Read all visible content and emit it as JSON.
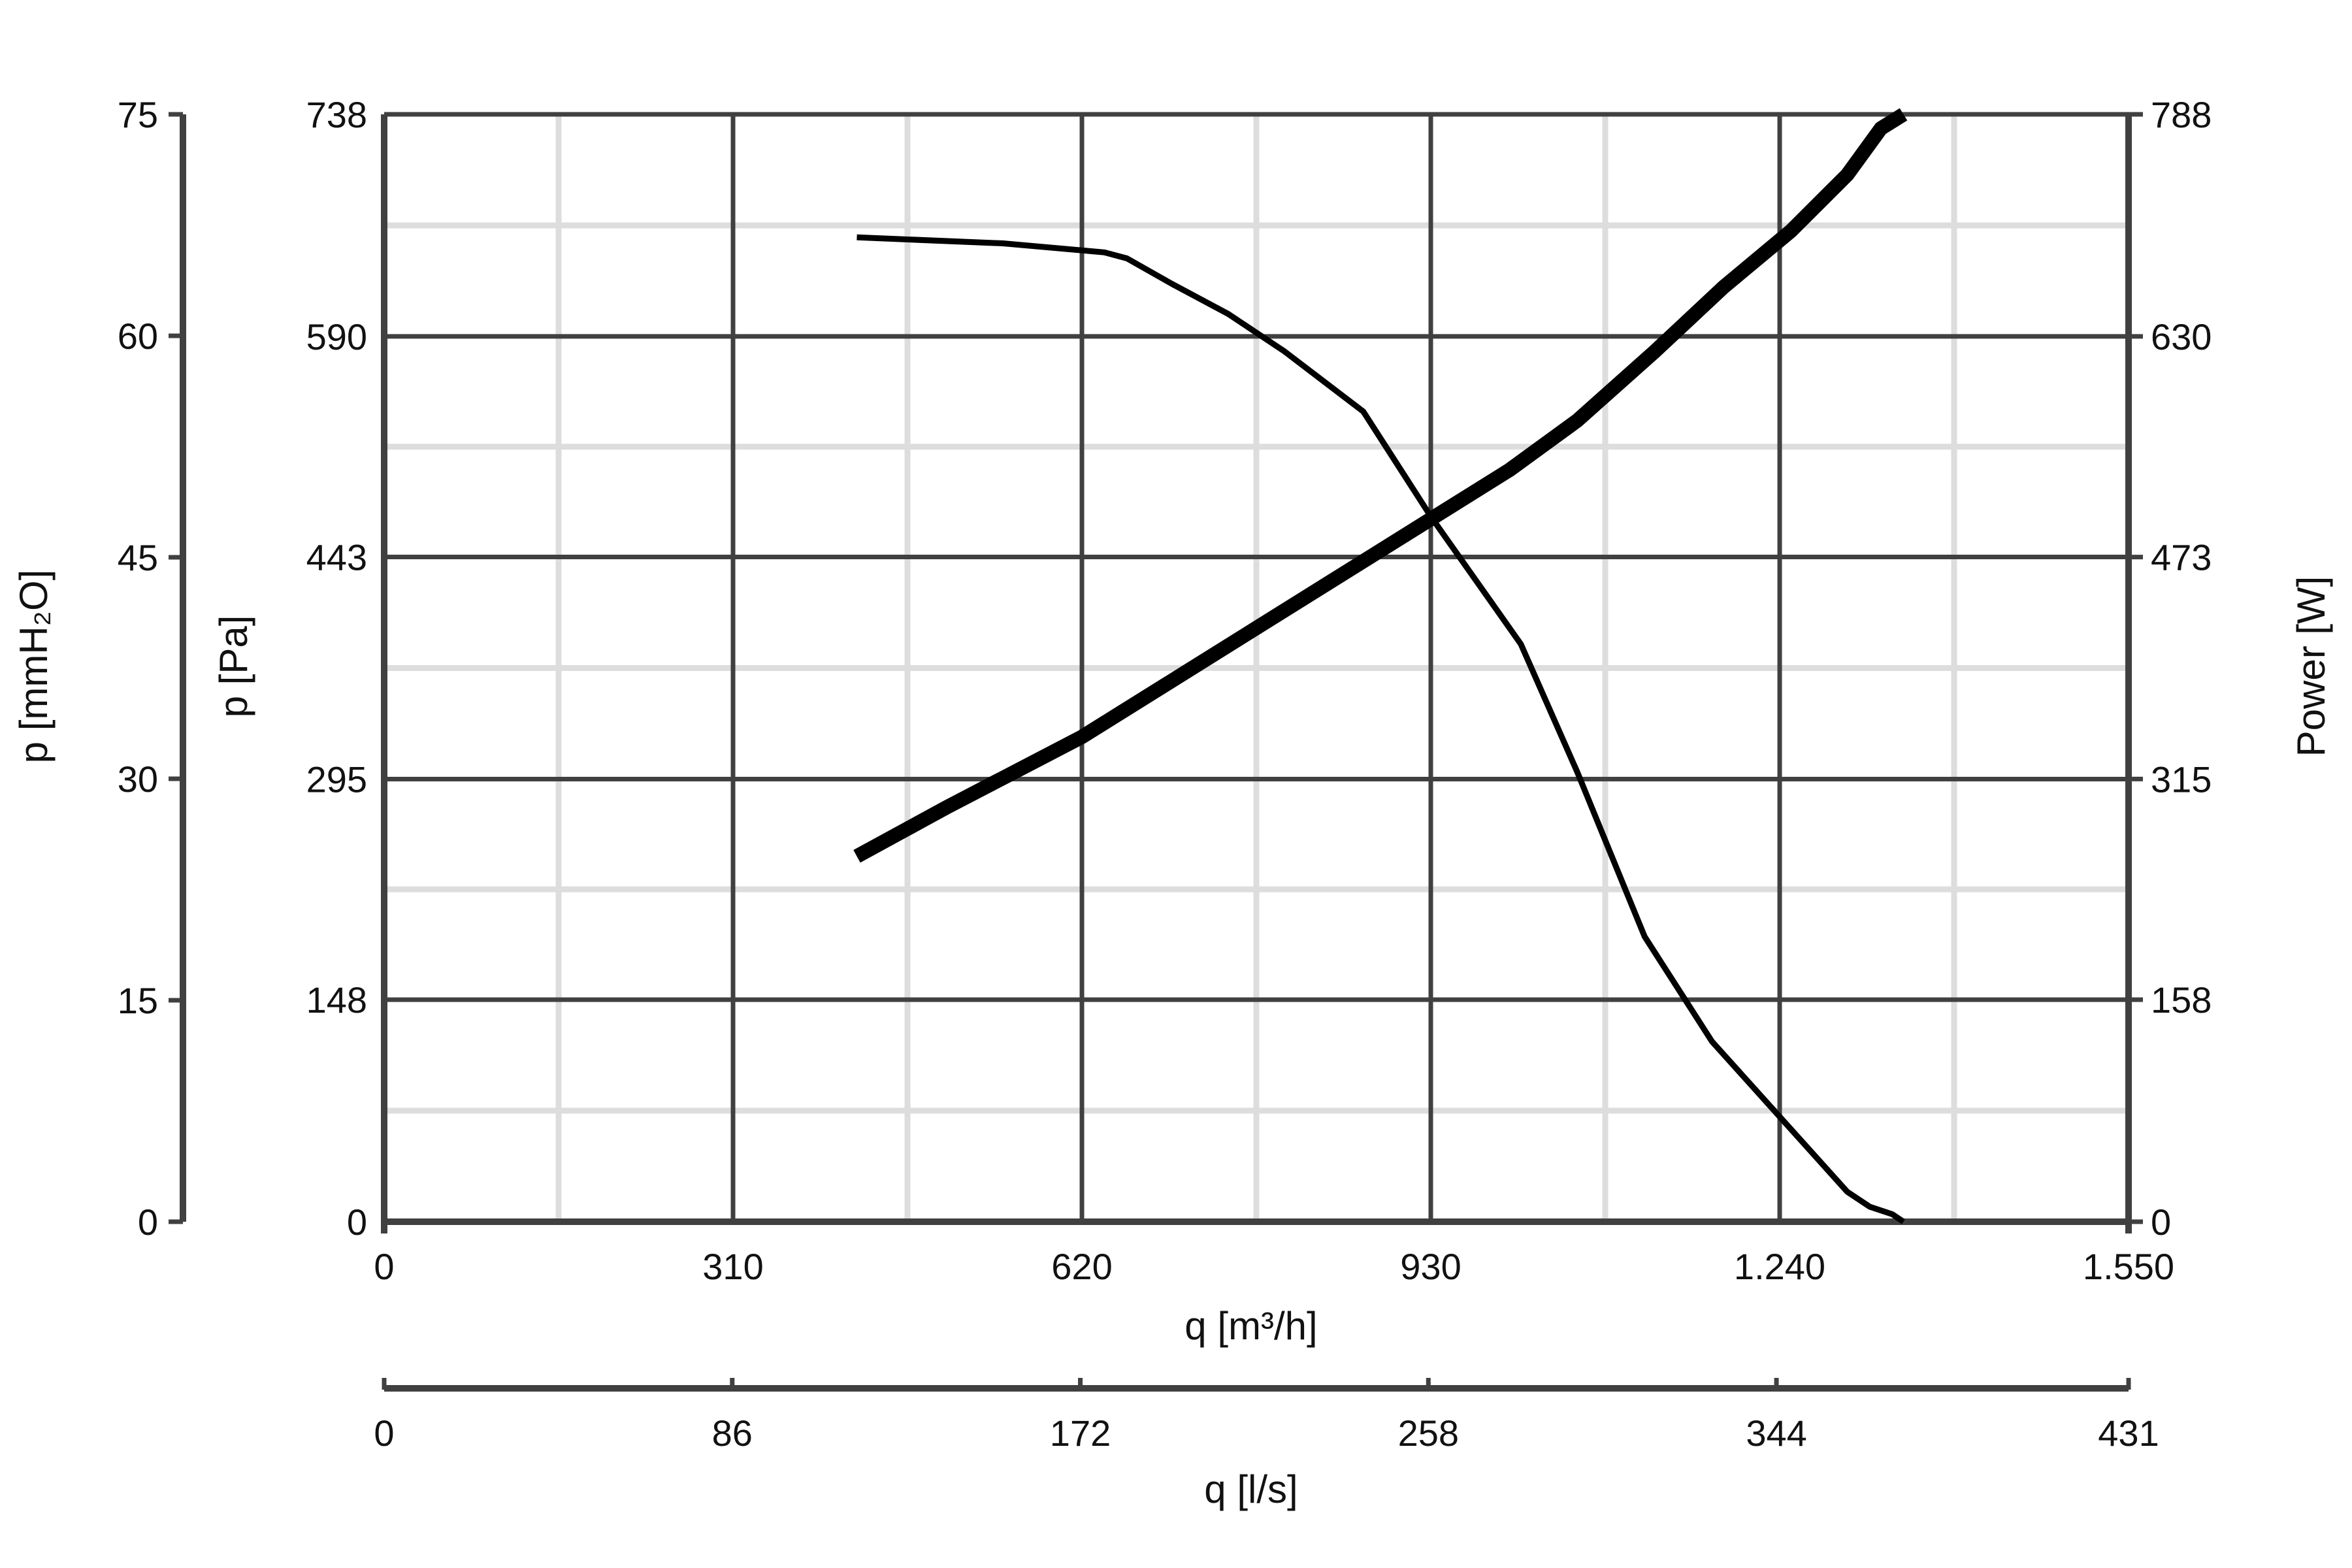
{
  "chart_data": {
    "type": "line",
    "title": "",
    "grid": true,
    "legend": "none",
    "x_axes": {
      "primary": {
        "label": "q [m³/h]",
        "range": [
          0,
          1550
        ],
        "ticks": [
          0,
          310,
          620,
          930,
          1240,
          1550
        ],
        "tick_labels": [
          "0",
          "310",
          "620",
          "930",
          "1.240",
          "1.550"
        ]
      },
      "secondary": {
        "label": "q [l/s]",
        "range": [
          0,
          431
        ],
        "ticks": [
          0,
          86,
          172,
          258,
          344,
          431
        ],
        "tick_labels": [
          "0",
          "86",
          "172",
          "258",
          "344",
          "431"
        ]
      }
    },
    "y_axes": {
      "pressure_pa": {
        "label": "p [Pa]",
        "range": [
          0,
          738
        ],
        "ticks": [
          0,
          148,
          295,
          443,
          590,
          738
        ],
        "tick_labels": [
          "0",
          "148",
          "295",
          "443",
          "590",
          "738"
        ]
      },
      "pressure_mmh2o": {
        "label": "p [mmH₂O]",
        "range": [
          0,
          75
        ],
        "ticks": [
          0,
          15,
          30,
          45,
          60,
          75
        ],
        "tick_labels": [
          "0",
          "15",
          "30",
          "45",
          "60",
          "75"
        ]
      },
      "power_w": {
        "label": "Power [W]",
        "range": [
          0,
          788
        ],
        "ticks": [
          0,
          158,
          315,
          473,
          630,
          788
        ],
        "tick_labels": [
          "0",
          "158",
          "315",
          "473",
          "630",
          "788"
        ]
      }
    },
    "series": [
      {
        "axis": "pressure_pa",
        "stroke": "thin",
        "x": [
          420,
          550,
          640,
          660,
          700,
          750,
          800,
          870,
          930,
          1010,
          1060,
          1120,
          1180,
          1240,
          1300,
          1320,
          1340,
          1350
        ],
        "y": [
          656,
          652,
          646,
          642,
          625,
          605,
          580,
          540,
          470,
          385,
          300,
          190,
          120,
          70,
          20,
          10,
          5,
          0
        ]
      },
      {
        "axis": "power_w",
        "stroke": "thick",
        "x": [
          420,
          500,
          560,
          620,
          700,
          780,
          860,
          930,
          1000,
          1060,
          1130,
          1190,
          1250,
          1300,
          1330,
          1350
        ],
        "y": [
          260,
          295,
          320,
          345,
          385,
          425,
          465,
          500,
          535,
          570,
          620,
          665,
          705,
          745,
          778,
          788
        ]
      }
    ],
    "colors": {
      "major_grid": "#404040",
      "minor_grid": "#dddddd",
      "curve": "#000000",
      "axis": "#404040"
    }
  }
}
